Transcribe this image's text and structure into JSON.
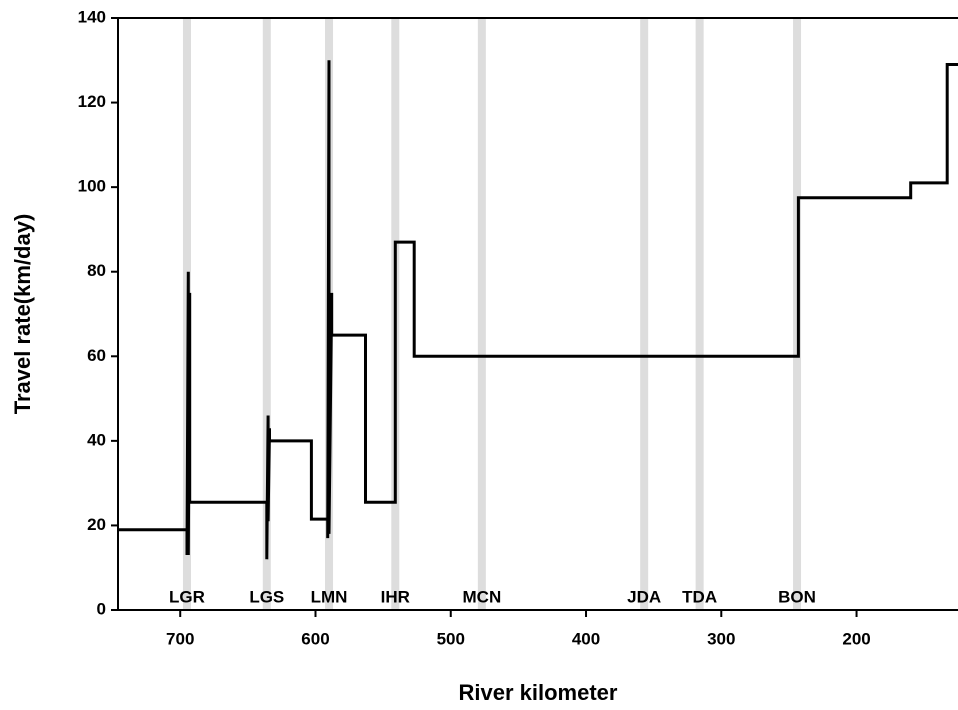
{
  "chart_data": {
    "type": "line",
    "xlabel": "River kilometer",
    "ylabel": "Travel rate(km/day)",
    "xlim": [
      746,
      125
    ],
    "ylim": [
      0,
      140
    ],
    "xticks": [
      700,
      600,
      500,
      400,
      300,
      200
    ],
    "yticks": [
      0,
      20,
      40,
      60,
      80,
      100,
      120,
      140
    ],
    "series": [
      {
        "color": "#000000",
        "x": [
          746,
          695,
          695,
          694,
          694,
          693,
          693,
          636,
          636,
          635,
          635,
          634,
          634,
          603,
          603,
          591,
          591,
          590,
          590,
          588,
          588,
          563,
          563,
          541,
          541,
          527,
          527,
          243,
          243,
          160,
          160,
          133,
          133,
          125
        ],
        "values": [
          19,
          19,
          13,
          80,
          13,
          75,
          25.5,
          25.5,
          12,
          46,
          21,
          43,
          40,
          40,
          21.5,
          21.5,
          17,
          130,
          18,
          75,
          65,
          65,
          25.5,
          25.5,
          87,
          87,
          60,
          60,
          97.5,
          97.5,
          101,
          101,
          129,
          129
        ]
      }
    ],
    "dam_color": "#dddddd",
    "dams": [
      {
        "label": "LGR",
        "x": 695
      },
      {
        "label": "LGS",
        "x": 636
      },
      {
        "label": "LMN",
        "x": 590
      },
      {
        "label": "IHR",
        "x": 541
      },
      {
        "label": "MCN",
        "x": 477
      },
      {
        "label": "JDA",
        "x": 357
      },
      {
        "label": "TDA",
        "x": 316
      },
      {
        "label": "BON",
        "x": 244
      }
    ]
  }
}
